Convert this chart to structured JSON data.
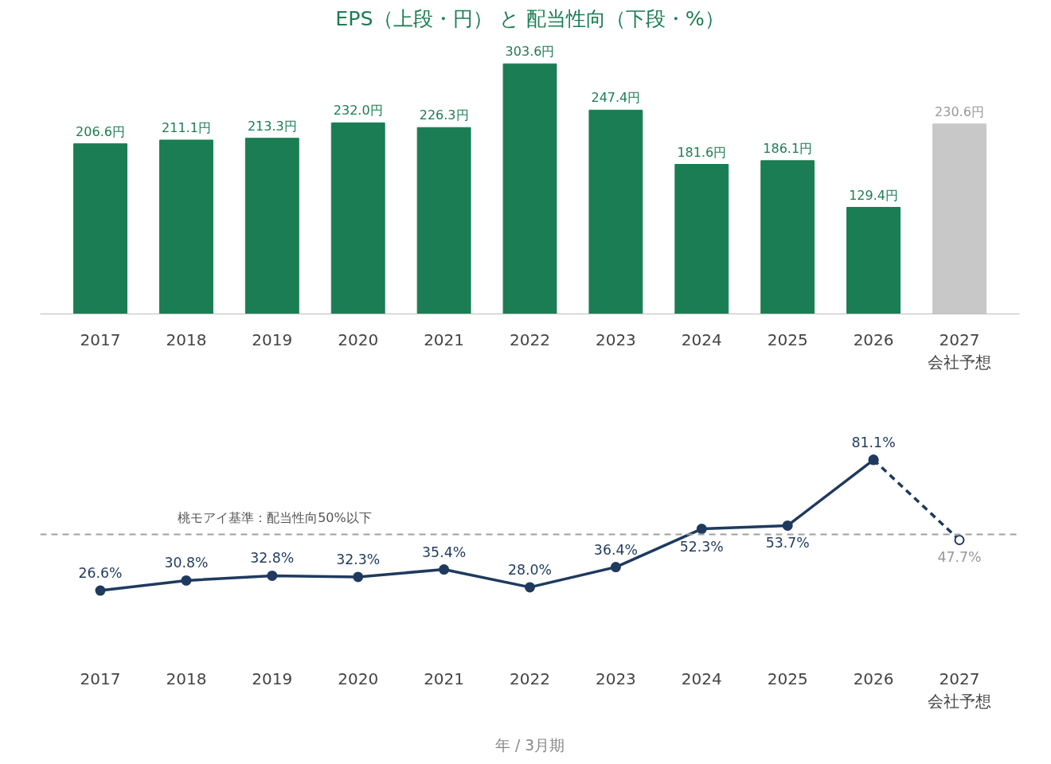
{
  "chart_data": [
    {
      "type": "bar",
      "title": "EPS（上段・円） と 配当性向（下段・%）",
      "categories": [
        "2017",
        "2018",
        "2019",
        "2020",
        "2021",
        "2022",
        "2023",
        "2024",
        "2025",
        "2026",
        "2027\n会社予想"
      ],
      "values": [
        206.6,
        211.1,
        213.3,
        232.0,
        226.3,
        303.6,
        247.4,
        181.6,
        186.1,
        129.4,
        230.6
      ],
      "value_labels": [
        "206.6円",
        "211.1円",
        "213.3円",
        "232.0円",
        "226.3円",
        "303.6円",
        "247.4円",
        "181.6円",
        "186.1円",
        "129.4円",
        "230.6円"
      ],
      "colors": [
        "#1b7d53",
        "#1b7d53",
        "#1b7d53",
        "#1b7d53",
        "#1b7d53",
        "#1b7d53",
        "#1b7d53",
        "#1b7d53",
        "#1b7d53",
        "#1b7d53",
        "#c8c8c8"
      ],
      "grid": false
    },
    {
      "type": "line",
      "xlabel": "年 / 3月期",
      "categories": [
        "2017",
        "2018",
        "2019",
        "2020",
        "2021",
        "2022",
        "2023",
        "2024",
        "2025",
        "2026",
        "2027\n会社予想"
      ],
      "series": [
        {
          "color": "#1f3a5f",
          "line_style": "dashed",
          "marker": "circle",
          "values": [
            null,
            null,
            null,
            null,
            null,
            null,
            null,
            null,
            null,
            81.1,
            47.7
          ],
          "value_labels": [
            null,
            null,
            null,
            null,
            null,
            null,
            null,
            null,
            null,
            null,
            "47.7%"
          ]
        },
        {
          "color": "#1f3a5f",
          "line_style": "solid",
          "marker": "circle",
          "values": [
            26.6,
            30.8,
            32.8,
            32.3,
            35.4,
            28.0,
            36.4,
            52.3,
            53.7,
            81.1,
            null
          ],
          "value_labels": [
            "26.6%",
            "30.8%",
            "32.8%",
            "32.3%",
            "35.4%",
            "28.0%",
            "36.4%",
            "52.3%",
            "53.7%",
            "81.1%",
            null
          ]
        }
      ],
      "ref_lines": [
        {
          "axis": "y",
          "value": 50,
          "label": "桃モアイ基準：配当性向50%以下",
          "color": "#a0a0a0",
          "line_style": "dashed"
        }
      ],
      "grid": false
    }
  ]
}
